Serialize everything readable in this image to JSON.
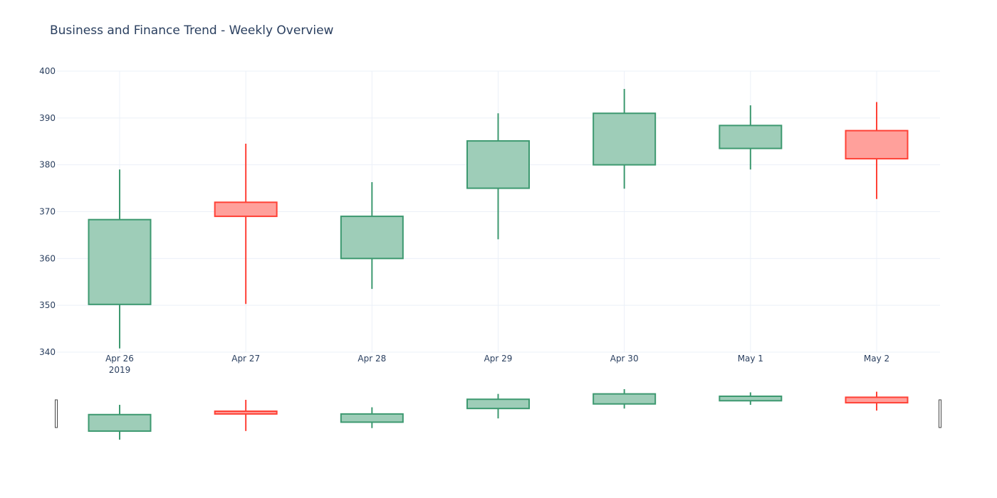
{
  "chart_data": {
    "type": "candlestick",
    "title": "Business and Finance Trend - Weekly Overview",
    "xlabel": "",
    "ylabel": "",
    "categories": [
      "Apr 26",
      "Apr 27",
      "Apr 28",
      "Apr 29",
      "Apr 30",
      "May 1",
      "May 2"
    ],
    "year_label": "2019",
    "ylim": [
      340,
      400
    ],
    "yticks": [
      340,
      350,
      360,
      370,
      380,
      390,
      400
    ],
    "grid": true,
    "legend": "none",
    "rangeslider": true,
    "colors": {
      "increasing_line": "#3d9970",
      "increasing_fill": "#9ecdb8",
      "decreasing_line": "#ff4136",
      "decreasing_fill": "#ffa09b",
      "grid": "#ebf0f8",
      "text": "#2a3f5f"
    },
    "series": [
      {
        "open": [
          350.2,
          372.0,
          360.0,
          375.0,
          380.0,
          383.5,
          387.3
        ],
        "high": [
          379.0,
          384.5,
          376.3,
          391.0,
          396.2,
          392.7,
          393.4
        ],
        "low": [
          340.8,
          350.3,
          353.5,
          364.1,
          374.9,
          379.0,
          372.7
        ],
        "close": [
          368.3,
          369.0,
          369.0,
          385.1,
          391.0,
          388.4,
          381.3
        ]
      }
    ]
  }
}
